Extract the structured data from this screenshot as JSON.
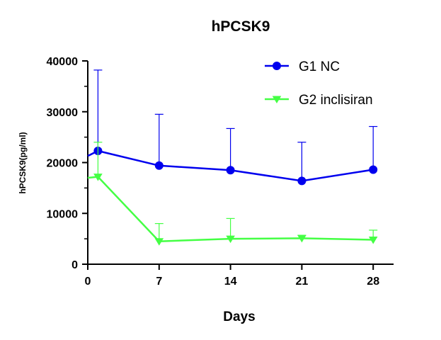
{
  "chart_data": {
    "type": "line",
    "title": "hPCSK9",
    "xlabel": "Days",
    "ylabel": "hPCSK9(pg/ml)",
    "xlim": [
      0,
      30
    ],
    "ylim": [
      0,
      40000
    ],
    "xticks": [
      0,
      7,
      14,
      21,
      28
    ],
    "yticks": [
      0,
      10000,
      20000,
      30000,
      40000
    ],
    "legend_position": "top-right",
    "grid": false,
    "series": [
      {
        "name": "G1 NC",
        "color": "#0000ee",
        "marker": "circle",
        "x": [
          1,
          7,
          14,
          21,
          28
        ],
        "y": [
          22300,
          19400,
          18500,
          16400,
          18600
        ],
        "error_upper": [
          38200,
          29500,
          26700,
          24000,
          27100
        ],
        "line_start_y": 21300
      },
      {
        "name": "G2 inclisiran",
        "color": "#44ff44",
        "marker": "triangle-down",
        "x": [
          1,
          7,
          14,
          21,
          28
        ],
        "y": [
          17200,
          4500,
          5000,
          5100,
          4800
        ],
        "error_upper": [
          24000,
          8000,
          9000,
          5700,
          6700
        ],
        "line_start_y": 17000
      }
    ]
  }
}
